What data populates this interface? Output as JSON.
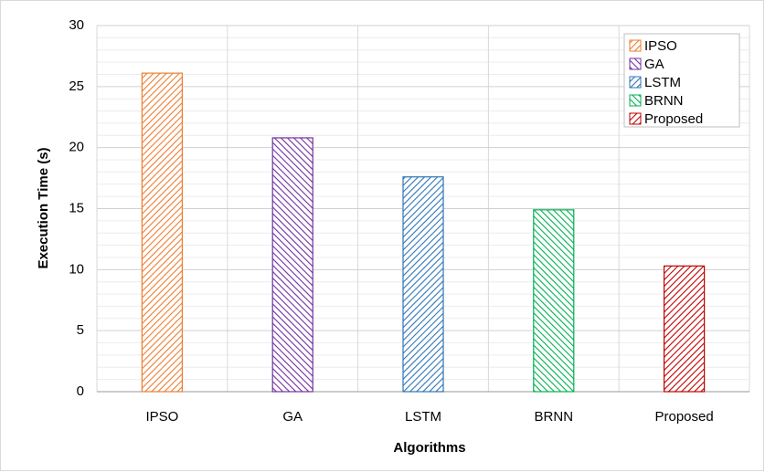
{
  "chart_data": {
    "type": "bar",
    "ylabel": "Execution Time (s)",
    "xlabel": "Algorithms",
    "categories": [
      "IPSO",
      "GA",
      "LSTM",
      "BRNN",
      "Proposed"
    ],
    "values": [
      26.1,
      20.8,
      17.6,
      14.9,
      10.3
    ],
    "colors": [
      "#ed7d31",
      "#7030a0",
      "#2e75b6",
      "#00b050",
      "#c00000"
    ],
    "hatches": [
      "forward",
      "back",
      "forward",
      "back",
      "forward"
    ],
    "ylim": [
      0,
      30
    ],
    "yticks": [
      0,
      5,
      10,
      15,
      20,
      25,
      30
    ],
    "grid": true,
    "minor_grid": true,
    "legend": "upper right"
  }
}
